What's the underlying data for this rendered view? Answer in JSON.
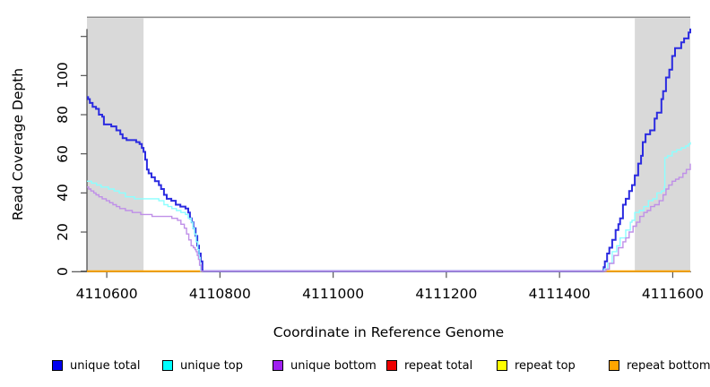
{
  "figure": {
    "y_axis_label": "Read Coverage Depth",
    "x_axis_label": "Coordinate in Reference Genome",
    "background_color": "#ffffff",
    "shaded_region_color": "#d9d9d9",
    "top_border_color": "#8e8e8e",
    "axis_color": "#444444",
    "tick_color": "#555555"
  },
  "legend": {
    "items": [
      {
        "label": "unique total",
        "color": "#0000ee"
      },
      {
        "label": "unique top",
        "color": "#00ffff"
      },
      {
        "label": "unique bottom",
        "color": "#a020f0"
      },
      {
        "label": "repeat total",
        "color": "#ee0000"
      },
      {
        "label": "repeat top",
        "color": "#ffff00"
      },
      {
        "label": "repeat bottom",
        "color": "#ffa500"
      }
    ]
  },
  "chart_data": {
    "type": "line",
    "title": "",
    "xlabel": "Coordinate in Reference Genome",
    "ylabel": "Read Coverage Depth",
    "xlim": [
      4110565,
      4111631
    ],
    "ylim": [
      0,
      129
    ],
    "grid": false,
    "legend_position": "bottom",
    "x_ticks": [
      {
        "v": 4110600,
        "label": "4110600"
      },
      {
        "v": 4110800,
        "label": "4110800"
      },
      {
        "v": 4111000,
        "label": "4111000"
      },
      {
        "v": 4111200,
        "label": "4111200"
      },
      {
        "v": 4111400,
        "label": "4111400"
      },
      {
        "v": 4111600,
        "label": "4111600"
      }
    ],
    "y_ticks": [
      {
        "v": 0,
        "label": "0"
      },
      {
        "v": 20,
        "label": "20"
      },
      {
        "v": 40,
        "label": "40"
      },
      {
        "v": 60,
        "label": "60"
      },
      {
        "v": 80,
        "label": "80"
      },
      {
        "v": 100,
        "label": "100"
      },
      {
        "v": 120,
        "label": ""
      }
    ],
    "shaded_regions": [
      {
        "x0": 4110565,
        "x1": 4110665
      },
      {
        "x0": 4111533,
        "x1": 4111631
      }
    ],
    "series": [
      {
        "name": "repeat total",
        "color": "#ee0000",
        "width": 1.5,
        "segments": [
          [
            [
              4110565,
              0
            ],
            [
              4110770,
              0
            ]
          ],
          [
            [
              4111477,
              0
            ],
            [
              4111631,
              0
            ]
          ]
        ]
      },
      {
        "name": "repeat top",
        "color": "#ffff00",
        "width": 1.5,
        "segments": [
          [
            [
              4110565,
              0
            ],
            [
              4110770,
              0
            ]
          ],
          [
            [
              4111477,
              0
            ],
            [
              4111631,
              0
            ]
          ]
        ]
      },
      {
        "name": "repeat bottom",
        "color": "#ffa500",
        "width": 2,
        "segments": [
          [
            [
              4110565,
              0
            ],
            [
              4110770,
              0
            ]
          ],
          [
            [
              4111477,
              0
            ],
            [
              4111631,
              0
            ]
          ]
        ]
      },
      {
        "name": "unique total",
        "color": "#2b2be0",
        "width": 2,
        "segments": [
          [
            [
              4110565,
              89
            ],
            [
              4110567,
              88
            ],
            [
              4110570,
              86
            ],
            [
              4110575,
              84
            ],
            [
              4110581,
              83
            ],
            [
              4110586,
              80
            ],
            [
              4110592,
              79
            ],
            [
              4110595,
              75
            ],
            [
              4110608,
              74
            ],
            [
              4110617,
              72
            ],
            [
              4110624,
              70
            ],
            [
              4110628,
              68
            ],
            [
              4110635,
              67
            ],
            [
              4110652,
              66
            ],
            [
              4110658,
              65
            ],
            [
              4110662,
              63
            ],
            [
              4110665,
              61
            ],
            [
              4110668,
              57
            ],
            [
              4110671,
              52
            ],
            [
              4110674,
              50
            ],
            [
              4110679,
              48
            ],
            [
              4110685,
              46
            ],
            [
              4110692,
              44
            ],
            [
              4110696,
              42
            ],
            [
              4110701,
              39
            ],
            [
              4110706,
              37
            ],
            [
              4110714,
              36
            ],
            [
              4110722,
              34
            ],
            [
              4110730,
              33
            ],
            [
              4110739,
              32
            ],
            [
              4110744,
              30
            ],
            [
              4110747,
              27
            ],
            [
              4110750,
              25
            ],
            [
              4110753,
              22
            ],
            [
              4110757,
              18
            ],
            [
              4110760,
              13
            ],
            [
              4110763,
              9
            ],
            [
              4110766,
              5
            ],
            [
              4110769,
              0
            ],
            [
              4111477,
              0
            ],
            [
              4111478,
              2
            ],
            [
              4111480,
              5
            ],
            [
              4111484,
              9
            ],
            [
              4111488,
              12
            ],
            [
              4111493,
              16
            ],
            [
              4111499,
              21
            ],
            [
              4111504,
              24
            ],
            [
              4111507,
              27
            ],
            [
              4111512,
              34
            ],
            [
              4111517,
              37
            ],
            [
              4111523,
              41
            ],
            [
              4111528,
              44
            ],
            [
              4111533,
              49
            ],
            [
              4111539,
              55
            ],
            [
              4111544,
              59
            ],
            [
              4111547,
              66
            ],
            [
              4111552,
              70
            ],
            [
              4111560,
              72
            ],
            [
              4111568,
              78
            ],
            [
              4111572,
              81
            ],
            [
              4111580,
              88
            ],
            [
              4111583,
              92
            ],
            [
              4111588,
              99
            ],
            [
              4111594,
              103
            ],
            [
              4111599,
              110
            ],
            [
              4111604,
              114
            ],
            [
              4111615,
              117
            ],
            [
              4111620,
              119
            ],
            [
              4111628,
              122
            ],
            [
              4111631,
              124
            ]
          ]
        ]
      },
      {
        "name": "unique top",
        "color": "#8cffff",
        "width": 1.4,
        "segments": [
          [
            [
              4110565,
              46
            ],
            [
              4110573,
              45
            ],
            [
              4110582,
              44
            ],
            [
              4110590,
              43
            ],
            [
              4110603,
              42
            ],
            [
              4110613,
              41
            ],
            [
              4110622,
              40
            ],
            [
              4110633,
              38
            ],
            [
              4110649,
              37
            ],
            [
              4110681,
              37
            ],
            [
              4110692,
              36
            ],
            [
              4110701,
              34
            ],
            [
              4110708,
              33
            ],
            [
              4110715,
              32
            ],
            [
              4110723,
              31
            ],
            [
              4110731,
              30
            ],
            [
              4110739,
              29
            ],
            [
              4110744,
              27
            ],
            [
              4110749,
              25
            ],
            [
              4110752,
              22
            ],
            [
              4110755,
              19
            ],
            [
              4110758,
              15
            ],
            [
              4110761,
              11
            ],
            [
              4110763,
              7
            ],
            [
              4110765,
              3
            ],
            [
              4110766,
              0
            ],
            [
              4111477,
              0
            ],
            [
              4111479,
              1
            ],
            [
              4111485,
              4
            ],
            [
              4111493,
              10
            ],
            [
              4111501,
              13
            ],
            [
              4111507,
              17
            ],
            [
              4111517,
              21
            ],
            [
              4111525,
              25
            ],
            [
              4111528,
              26
            ],
            [
              4111533,
              30
            ],
            [
              4111541,
              31
            ],
            [
              4111549,
              33
            ],
            [
              4111557,
              36
            ],
            [
              4111565,
              37
            ],
            [
              4111572,
              40
            ],
            [
              4111580,
              41
            ],
            [
              4111585,
              43
            ],
            [
              4111586,
              58
            ],
            [
              4111591,
              59
            ],
            [
              4111599,
              61
            ],
            [
              4111607,
              62
            ],
            [
              4111615,
              63
            ],
            [
              4111623,
              64
            ],
            [
              4111628,
              65
            ],
            [
              4111631,
              66
            ]
          ]
        ]
      },
      {
        "name": "unique bottom",
        "color": "#bf8fe8",
        "width": 1.4,
        "segments": [
          [
            [
              4110565,
              43
            ],
            [
              4110568,
              42
            ],
            [
              4110572,
              41
            ],
            [
              4110577,
              40
            ],
            [
              4110581,
              39
            ],
            [
              4110586,
              38
            ],
            [
              4110592,
              37
            ],
            [
              4110599,
              36
            ],
            [
              4110605,
              35
            ],
            [
              4110611,
              34
            ],
            [
              4110617,
              33
            ],
            [
              4110623,
              32
            ],
            [
              4110633,
              31
            ],
            [
              4110645,
              30
            ],
            [
              4110660,
              29
            ],
            [
              4110680,
              28
            ],
            [
              4110703,
              28
            ],
            [
              4110715,
              27
            ],
            [
              4110725,
              26
            ],
            [
              4110731,
              24
            ],
            [
              4110737,
              22
            ],
            [
              4110741,
              19
            ],
            [
              4110745,
              16
            ],
            [
              4110749,
              13
            ],
            [
              4110753,
              12
            ],
            [
              4110756,
              11
            ],
            [
              4110758,
              10
            ],
            [
              4110760,
              8
            ],
            [
              4110762,
              6
            ],
            [
              4110764,
              3
            ],
            [
              4110767,
              0
            ],
            [
              4111480,
              0
            ],
            [
              4111482,
              1
            ],
            [
              4111488,
              4
            ],
            [
              4111496,
              8
            ],
            [
              4111504,
              12
            ],
            [
              4111512,
              15
            ],
            [
              4111517,
              17
            ],
            [
              4111523,
              20
            ],
            [
              4111530,
              23
            ],
            [
              4111536,
              25
            ],
            [
              4111542,
              28
            ],
            [
              4111549,
              30
            ],
            [
              4111555,
              31
            ],
            [
              4111561,
              33
            ],
            [
              4111568,
              34
            ],
            [
              4111576,
              36
            ],
            [
              4111583,
              39
            ],
            [
              4111588,
              42
            ],
            [
              4111593,
              44
            ],
            [
              4111599,
              46
            ],
            [
              4111605,
              47
            ],
            [
              4111611,
              48
            ],
            [
              4111618,
              50
            ],
            [
              4111624,
              52
            ],
            [
              4111631,
              55
            ]
          ]
        ]
      }
    ]
  }
}
